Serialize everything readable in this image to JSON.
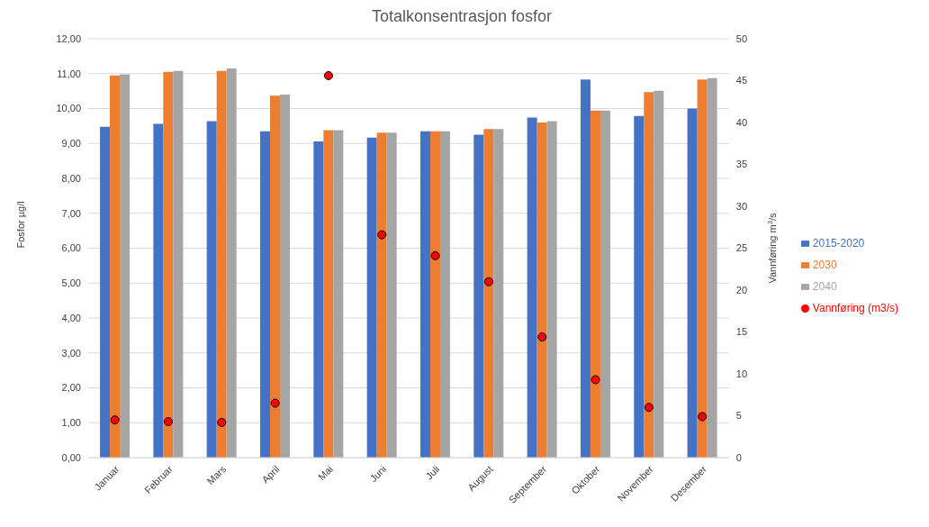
{
  "chart_data": {
    "type": "bar",
    "title": "Totalkonsentrasjon fosfor",
    "categories": [
      "Januar",
      "Februar",
      "Mars",
      "April",
      "Mai",
      "Juni",
      "Juli",
      "August",
      "September",
      "Oktober",
      "November",
      "Desember"
    ],
    "series": [
      {
        "name": "2015-2020",
        "color": "#4472c4",
        "values": [
          9.48,
          9.56,
          9.64,
          9.35,
          9.06,
          9.17,
          9.35,
          9.25,
          9.74,
          10.83,
          9.79,
          10.0
        ]
      },
      {
        "name": "2030",
        "color": "#ed7d31",
        "values": [
          10.95,
          11.05,
          11.08,
          10.37,
          9.38,
          9.31,
          9.35,
          9.41,
          9.6,
          9.94,
          10.47,
          10.83
        ]
      },
      {
        "name": "2040",
        "color": "#a5a5a5",
        "values": [
          10.98,
          11.08,
          11.15,
          10.4,
          9.38,
          9.31,
          9.35,
          9.41,
          9.64,
          9.94,
          10.51,
          10.87
        ]
      },
      {
        "name": "Vannføring (m3/s)",
        "type": "scatter",
        "axis": "y2",
        "color": "#ff0000",
        "marker": "circle",
        "values": [
          4.5,
          4.3,
          4.2,
          6.5,
          45.6,
          26.6,
          24.1,
          21.0,
          14.4,
          9.3,
          6.0,
          4.9
        ]
      }
    ],
    "ylabel": "Fosfor µg/l",
    "y2label": "Vannføring m$^{3}$/s",
    "ylim": [
      0,
      12
    ],
    "yticks": [
      {
        "value": 0,
        "label": "0,00"
      },
      {
        "value": 1,
        "label": "1,00"
      },
      {
        "value": 2,
        "label": "2,00"
      },
      {
        "value": 3,
        "label": "3,00"
      },
      {
        "value": 4,
        "label": "4,00"
      },
      {
        "value": 5,
        "label": "5,00"
      },
      {
        "value": 6,
        "label": "6,00"
      },
      {
        "value": 7,
        "label": "7,00"
      },
      {
        "value": 8,
        "label": "8,00"
      },
      {
        "value": 9,
        "label": "9,00"
      },
      {
        "value": 10,
        "label": "10,00"
      },
      {
        "value": 11,
        "label": "11,00"
      },
      {
        "value": 12,
        "label": "12,00"
      }
    ],
    "y2lim": [
      0,
      50
    ],
    "y2ticks": [
      0,
      5,
      10,
      15,
      20,
      25,
      30,
      35,
      40,
      45,
      50
    ],
    "grid": "y",
    "legend": "right"
  }
}
